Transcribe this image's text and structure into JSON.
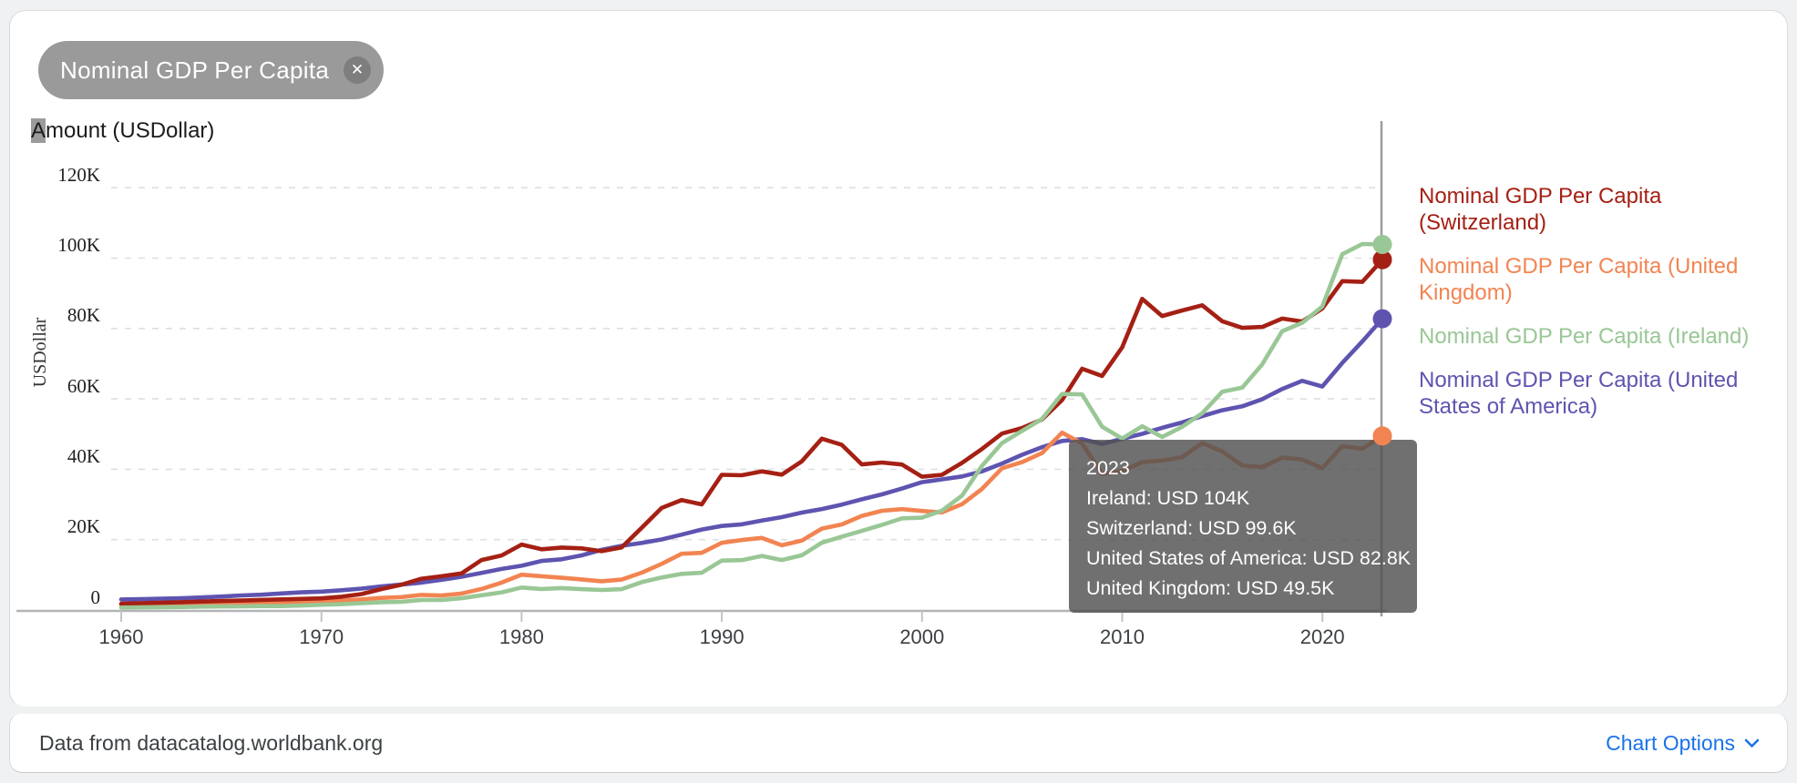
{
  "filter_chip": {
    "label": "Nominal GDP Per Capita",
    "close_glyph": "✕"
  },
  "chart_title": {
    "highlighted_letter": "A",
    "rest": "mount (USDollar)"
  },
  "y_axis": {
    "title": "USDollar",
    "ticks": [
      "120K",
      "100K",
      "80K",
      "60K",
      "40K",
      "20K",
      "0"
    ]
  },
  "x_axis": {
    "ticks": [
      "1960",
      "1970",
      "1980",
      "1990",
      "2000",
      "2010",
      "2020"
    ]
  },
  "legend": {
    "items": [
      {
        "label": "Nominal GDP Per Capita (Switzerland)",
        "color": "#a52014"
      },
      {
        "label": "Nominal GDP Per Capita (United Kingdom)",
        "color": "#f28451"
      },
      {
        "label": "Nominal GDP Per Capita (Ireland)",
        "color": "#99c795"
      },
      {
        "label": "Nominal GDP Per Capita (United States of America)",
        "color": "#5e54b0"
      }
    ]
  },
  "tooltip": {
    "year": "2023",
    "entries": [
      "Ireland: USD 104K",
      "Switzerland: USD 99.6K",
      "United States of America: USD 82.8K",
      "United Kingdom: USD 49.5K"
    ]
  },
  "footer": {
    "source": "Data from datacatalog.worldbank.org",
    "chart_options_label": "Chart Options"
  },
  "colors": {
    "link_blue": "#1a73e8",
    "tooltip_bg": "rgba(80,80,80,0.82)",
    "hover_line": "#9b9da0",
    "gridline": "#dddfe1",
    "axis": "#b2b4b6",
    "chip_bg": "#9a9a9a"
  },
  "chart_data": {
    "type": "line",
    "title": "Amount (USDollar)",
    "xlabel": "",
    "ylabel": "USDollar",
    "units": "USD thousands",
    "ylim": [
      0,
      130
    ],
    "grid": "dashed-horizontal",
    "legend_position": "right",
    "hover_year": 2023,
    "years": [
      1960,
      1961,
      1962,
      1963,
      1964,
      1965,
      1966,
      1967,
      1968,
      1969,
      1970,
      1971,
      1972,
      1973,
      1974,
      1975,
      1976,
      1977,
      1978,
      1979,
      1980,
      1981,
      1982,
      1983,
      1984,
      1985,
      1986,
      1987,
      1988,
      1989,
      1990,
      1991,
      1992,
      1993,
      1994,
      1995,
      1996,
      1997,
      1998,
      1999,
      2000,
      2001,
      2002,
      2003,
      2004,
      2005,
      2006,
      2007,
      2008,
      2009,
      2010,
      2011,
      2012,
      2013,
      2014,
      2015,
      2016,
      2017,
      2018,
      2019,
      2020,
      2021,
      2022,
      2023
    ],
    "series": [
      {
        "name": "Nominal GDP Per Capita (United States of America)",
        "country": "United States of America",
        "color": "#5e54b0",
        "values": [
          3.01,
          3.07,
          3.24,
          3.37,
          3.57,
          3.83,
          4.15,
          4.34,
          4.7,
          5.03,
          5.23,
          5.61,
          6.09,
          6.73,
          7.22,
          7.8,
          8.59,
          9.45,
          10.56,
          11.67,
          12.57,
          13.95,
          14.41,
          15.53,
          17.09,
          18.24,
          19.07,
          20.04,
          21.42,
          22.86,
          23.89,
          24.34,
          25.42,
          26.39,
          27.69,
          28.69,
          29.97,
          31.46,
          32.85,
          34.51,
          36.33,
          37.13,
          37.95,
          39.41,
          41.64,
          44.11,
          46.3,
          48.05,
          48.57,
          47.2,
          48.65,
          50.07,
          51.78,
          53.29,
          55.12,
          56.76,
          57.87,
          59.91,
          62.82,
          65.12,
          63.53,
          70.22,
          76.33,
          82.77
        ]
      },
      {
        "name": "Nominal GDP Per Capita (United Kingdom)",
        "country": "United Kingdom",
        "color": "#f28451",
        "values": [
          1.4,
          1.48,
          1.54,
          1.61,
          1.75,
          1.87,
          1.98,
          2.06,
          1.98,
          2.1,
          2.35,
          2.65,
          3.03,
          3.43,
          3.67,
          4.3,
          4.14,
          4.68,
          5.98,
          7.8,
          10.03,
          9.6,
          9.15,
          8.69,
          8.18,
          8.65,
          10.61,
          13.12,
          15.99,
          16.24,
          19.1,
          19.9,
          20.49,
          18.39,
          19.71,
          23.13,
          24.33,
          26.74,
          28.21,
          28.67,
          28.15,
          27.74,
          30.06,
          34.42,
          40.29,
          42.03,
          44.6,
          50.4,
          47.29,
          38.71,
          39.44,
          42.04,
          42.46,
          43.45,
          47.45,
          45.07,
          41.06,
          40.62,
          43.31,
          42.75,
          40.32,
          46.54,
          45.85,
          49.46
        ]
      },
      {
        "name": "Nominal GDP Per Capita (Switzerland)",
        "country": "Switzerland",
        "color": "#a52014",
        "values": [
          1.79,
          1.92,
          2.09,
          2.23,
          2.4,
          2.56,
          2.7,
          2.87,
          3.02,
          3.16,
          3.31,
          3.77,
          4.52,
          5.95,
          7.2,
          8.9,
          9.6,
          10.4,
          14.2,
          15.5,
          18.6,
          17.26,
          17.74,
          17.51,
          16.71,
          17.8,
          23.36,
          29.0,
          31.26,
          30.02,
          38.43,
          38.28,
          39.41,
          38.48,
          42.24,
          48.69,
          46.93,
          41.38,
          41.92,
          41.35,
          37.87,
          38.42,
          41.81,
          45.77,
          50.14,
          51.73,
          54.14,
          59.66,
          68.56,
          66.52,
          74.61,
          88.42,
          83.54,
          85.11,
          86.61,
          82.08,
          80.17,
          80.45,
          82.82,
          81.99,
          85.68,
          93.46,
          93.26,
          99.56
        ]
      },
      {
        "name": "Nominal GDP Per Capita (Ireland)",
        "country": "Ireland",
        "color": "#99c795",
        "values": [
          0.69,
          0.74,
          0.8,
          0.85,
          0.95,
          1.0,
          1.04,
          1.11,
          1.12,
          1.27,
          1.49,
          1.65,
          1.93,
          2.22,
          2.34,
          2.86,
          2.88,
          3.33,
          4.19,
          5.03,
          6.38,
          5.97,
          6.24,
          5.92,
          5.69,
          5.92,
          7.91,
          9.24,
          10.27,
          10.58,
          14.05,
          14.18,
          15.38,
          14.2,
          15.54,
          19.13,
          20.86,
          22.48,
          24.2,
          26.05,
          26.24,
          28.25,
          32.5,
          40.97,
          47.46,
          50.88,
          54.29,
          61.39,
          61.26,
          52.1,
          48.72,
          52.22,
          49.18,
          52.06,
          55.9,
          62.01,
          63.2,
          69.82,
          79.26,
          81.64,
          86.25,
          101.11,
          104.0,
          103.89
        ]
      }
    ]
  }
}
